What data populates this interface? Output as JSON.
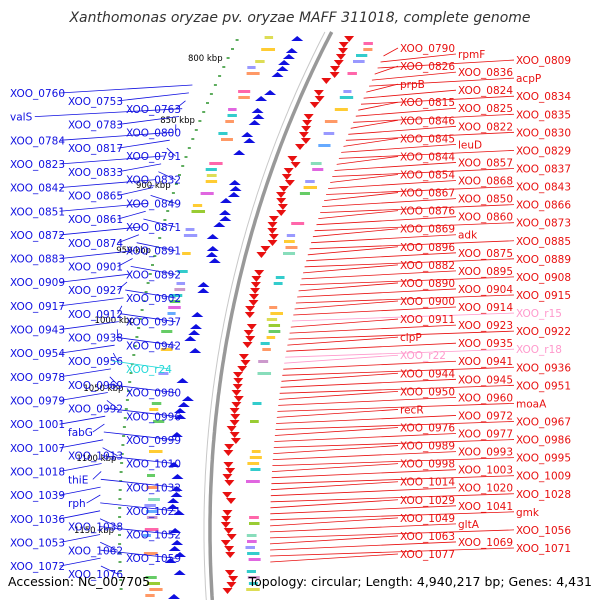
{
  "title": "Xanthomonas oryzae pv. oryzae MAFF 311018, complete genome",
  "accession": "Accession: NC_007705",
  "topology": "Topology: circular; Length: 4,940,217 bp; Genes: 4,431",
  "colors": {
    "forward": "#e81010",
    "reverse": "#1010e0",
    "rna": "#ff99cc",
    "trna": "#22d8d8",
    "axis": "#999999",
    "tick": "#1a8a1a"
  },
  "scale_labels": [
    "800 kbp",
    "850 kbp",
    "900 kbp",
    "950 kbp",
    "1000 kbp",
    "1050 kbp",
    "1100 kbp",
    "1150 kbp"
  ],
  "left_labels": [
    "XOO_0760",
    "XOO_0753",
    "XOO_0763",
    "valS",
    "XOO_0783",
    "XOO_0800",
    "XOO_0784",
    "XOO_0817",
    "XOO_0791",
    "XOO_0823",
    "XOO_0833",
    "XOO_0832",
    "XOO_0842",
    "XOO_0865",
    "XOO_0849",
    "XOO_0851",
    "XOO_0861",
    "XOO_0871",
    "XOO_0872",
    "XOO_0874",
    "XOO_0891",
    "XOO_0883",
    "XOO_0901",
    "XOO_0892",
    "XOO_0909",
    "XOO_0927",
    "XOO_0902",
    "XOO_0917",
    "XOO_0912",
    "XOO_0937",
    "XOO_0943",
    "XOO_0938",
    "XOO_0942",
    "XOO_0954",
    "XOO_0956",
    "XOO_r24",
    "XOO_0978",
    "XOO_0969",
    "XOO_0980",
    "XOO_0979",
    "XOO_0992",
    "XOO_0996",
    "XOO_1001",
    "fabG",
    "XOO_0999",
    "XOO_1007",
    "XOO_1013",
    "XOO_1010",
    "XOO_1018",
    "thiE",
    "XOO_1032",
    "XOO_1039",
    "rph",
    "XOO_1021",
    "XOO_1036",
    "XOO_1038",
    "XOO_1052",
    "XOO_1053",
    "XOO_1062",
    "XOO_1059",
    "XOO_1072",
    "XOO_1076"
  ],
  "right_labels": [
    "XOO_0790",
    "rpmF",
    "XOO_0809",
    "XOO_0826",
    "XOO_0836",
    "acpP",
    "prpB",
    "XOO_0824",
    "XOO_0834",
    "XOO_0815",
    "XOO_0825",
    "XOO_0835",
    "XOO_0846",
    "XOO_0822",
    "XOO_0830",
    "XOO_0845",
    "leuD",
    "XOO_0829",
    "XOO_0844",
    "XOO_0857",
    "XOO_0837",
    "XOO_0854",
    "XOO_0868",
    "XOO_0843",
    "XOO_0867",
    "XOO_0850",
    "XOO_0866",
    "XOO_0876",
    "XOO_0860",
    "XOO_0873",
    "XOO_0869",
    "adk",
    "XOO_0885",
    "XOO_0896",
    "XOO_0875",
    "XOO_0889",
    "XOO_0882",
    "XOO_0895",
    "XOO_0908",
    "XOO_0890",
    "XOO_0904",
    "XOO_0915",
    "XOO_0900",
    "XOO_0914",
    "XOO_r15",
    "XOO_0911",
    "XOO_0923",
    "XOO_0922",
    "clpP",
    "XOO_0935",
    "XOO_r18",
    "XOO_r22",
    "XOO_0941",
    "XOO_0936",
    "XOO_0944",
    "XOO_0945",
    "XOO_0951",
    "XOO_0950",
    "XOO_0960",
    "moaA",
    "recR",
    "XOO_0972",
    "XOO_0967",
    "XOO_0976",
    "XOO_0977",
    "XOO_0986",
    "XOO_0989",
    "XOO_0993",
    "XOO_0995",
    "XOO_0998",
    "XOO_1003",
    "XOO_1009",
    "XOO_1014",
    "XOO_1020",
    "XOO_1028",
    "XOO_1029",
    "XOO_1041",
    "gmk",
    "XOO_1049",
    "gltA",
    "XOO_1056",
    "XOO_1063",
    "XOO_1069",
    "XOO_1071",
    "XOO_1077"
  ]
}
